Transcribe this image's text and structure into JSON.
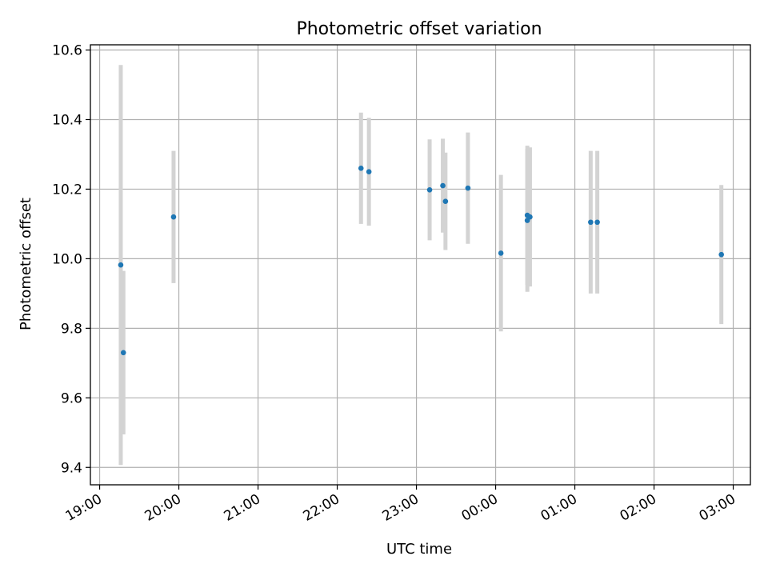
{
  "chart_data": {
    "type": "scatter",
    "title": "Photometric offset variation",
    "xlabel": "UTC time",
    "ylabel": "Photometric offset",
    "x_ticks": [
      "19:00",
      "20:00",
      "21:00",
      "22:00",
      "23:00",
      "00:00",
      "01:00",
      "02:00",
      "03:00"
    ],
    "y_ticks": [
      "9.4",
      "9.6",
      "9.8",
      "10.0",
      "10.2",
      "10.4",
      "10.6"
    ],
    "xlim": [
      "18:53",
      "03:13"
    ],
    "ylim": [
      9.35,
      10.615
    ],
    "grid": true,
    "colors": {
      "point": "#1f77b4",
      "errorbar": "#d3d3d3",
      "grid": "#b0b0b0"
    },
    "points": [
      {
        "time": "19:16",
        "y": 9.982,
        "err": 0.575
      },
      {
        "time": "19:18",
        "y": 9.73,
        "err": 0.235
      },
      {
        "time": "19:56",
        "y": 10.12,
        "err": 0.19
      },
      {
        "time": "22:18",
        "y": 10.26,
        "err": 0.16
      },
      {
        "time": "22:24",
        "y": 10.25,
        "err": 0.155
      },
      {
        "time": "23:10",
        "y": 10.198,
        "err": 0.145
      },
      {
        "time": "23:20",
        "y": 10.21,
        "err": 0.135
      },
      {
        "time": "23:22",
        "y": 10.165,
        "err": 0.14
      },
      {
        "time": "23:39",
        "y": 10.203,
        "err": 0.16
      },
      {
        "time": "00:04",
        "y": 10.016,
        "err": 0.225
      },
      {
        "time": "00:24",
        "y": 10.125,
        "err": 0.2
      },
      {
        "time": "00:24",
        "y": 10.11,
        "err": 0.205
      },
      {
        "time": "00:26",
        "y": 10.12,
        "err": 0.2
      },
      {
        "time": "01:12",
        "y": 10.105,
        "err": 0.205
      },
      {
        "time": "01:17",
        "y": 10.105,
        "err": 0.205
      },
      {
        "time": "02:51",
        "y": 10.012,
        "err": 0.2
      }
    ]
  }
}
